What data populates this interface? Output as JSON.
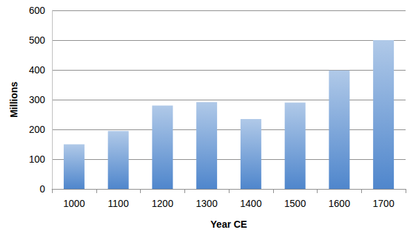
{
  "chart_data": {
    "type": "bar",
    "x_label": "Year CE",
    "y_label": "Millions",
    "categories": [
      "1000",
      "1100",
      "1200",
      "1300",
      "1400",
      "1500",
      "1600",
      "1700"
    ],
    "values": [
      150,
      195,
      280,
      292,
      235,
      290,
      398,
      500
    ],
    "color": "#4f86cc",
    "ylim": [
      0,
      600
    ],
    "yticks": [
      0,
      100,
      200,
      300,
      400,
      500,
      600
    ],
    "grid": true
  }
}
